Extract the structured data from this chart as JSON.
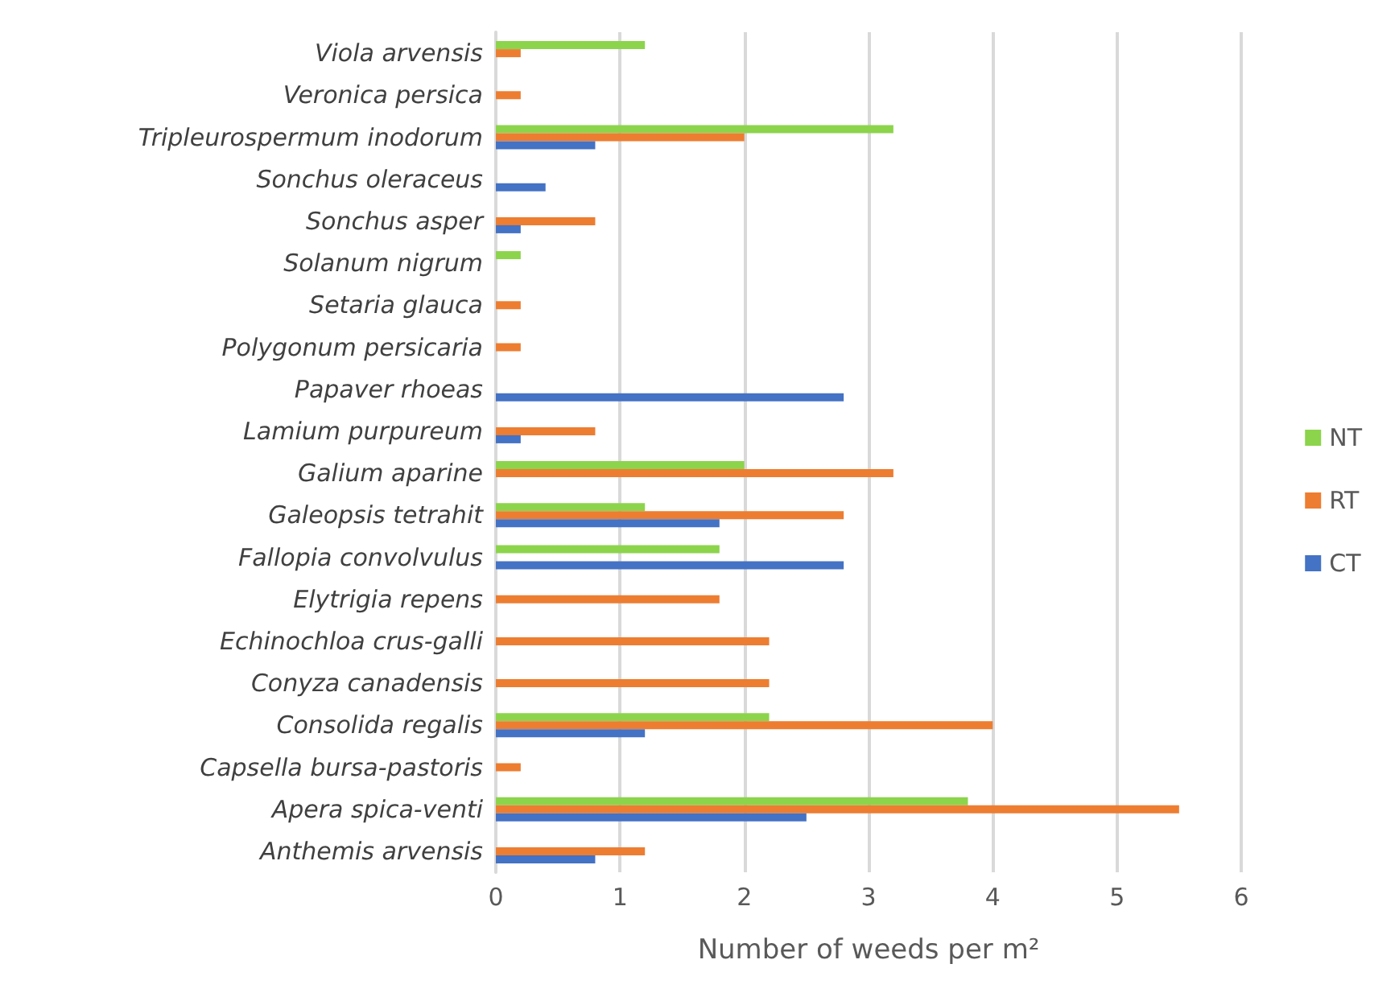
{
  "chart_data": {
    "type": "bar",
    "orientation": "horizontal",
    "xlabel": "Number of weeds per m²",
    "categories": [
      "Viola arvensis",
      "Veronica persica",
      "Tripleurospermum inodorum",
      "Sonchus oleraceus",
      "Sonchus asper",
      "Solanum nigrum",
      "Setaria glauca",
      "Polygonum persicaria",
      "Papaver rhoeas",
      "Lamium purpureum",
      "Galium aparine",
      "Galeopsis tetrahit",
      "Fallopia convolvulus",
      "Elytrigia repens",
      "Echinochloa crus-galli",
      "Conyza canadensis",
      "Consolida regalis",
      "Capsella bursa-pastoris",
      "Apera spica-venti",
      "Anthemis arvensis"
    ],
    "series": [
      {
        "name": "NT",
        "color": "#8cd44b",
        "values": [
          1.2,
          0,
          3.2,
          0,
          0,
          0.2,
          0,
          0,
          0,
          0,
          2.0,
          1.2,
          1.8,
          0,
          0,
          0,
          2.2,
          0,
          3.8,
          0
        ]
      },
      {
        "name": "RT",
        "color": "#ed7d31",
        "values": [
          0.2,
          0.2,
          2.0,
          0,
          0.8,
          0,
          0.2,
          0.2,
          0,
          0.8,
          3.2,
          2.8,
          0,
          1.8,
          2.2,
          2.2,
          4.0,
          0.2,
          5.5,
          1.2
        ]
      },
      {
        "name": "CT",
        "color": "#4472c4",
        "values": [
          0,
          0,
          0.8,
          0.4,
          0.2,
          0,
          0,
          0,
          2.8,
          0.2,
          0,
          1.8,
          2.8,
          0,
          0,
          0,
          1.2,
          0,
          2.5,
          0.8
        ]
      }
    ],
    "xlim": [
      0,
      6
    ],
    "xticks": [
      0,
      1,
      2,
      3,
      4,
      5,
      6
    ],
    "grid": "x",
    "legend": "right"
  }
}
